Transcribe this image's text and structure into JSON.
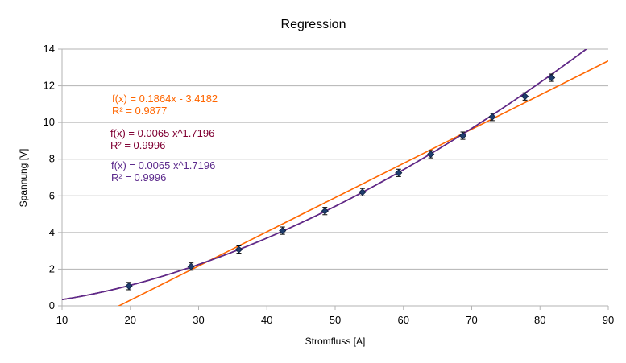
{
  "chart_data": {
    "type": "scatter",
    "title": "Regression",
    "xlabel": "Stromfluss [A]",
    "ylabel": "Spannung [V]",
    "xlim": [
      10,
      90
    ],
    "ylim": [
      0,
      14
    ],
    "xticks": [
      10,
      20,
      30,
      40,
      50,
      60,
      70,
      80,
      90
    ],
    "yticks": [
      0,
      2,
      4,
      6,
      8,
      10,
      12,
      14
    ],
    "grid": "horizontal",
    "points": {
      "color": "#1f3d6e",
      "x": [
        19.8,
        28.9,
        35.9,
        42.3,
        48.5,
        54.0,
        59.3,
        64.0,
        68.7,
        73.0,
        77.8,
        81.7
      ],
      "y": [
        1.08,
        2.14,
        3.07,
        4.1,
        5.17,
        6.2,
        7.25,
        8.27,
        9.28,
        10.3,
        11.42,
        12.44
      ],
      "yerr": 0.2
    },
    "trendlines": [
      {
        "kind": "linear",
        "slope": 0.1864,
        "intercept": -3.4182,
        "color": "#ff6600",
        "equation": "f(x) = 0.1864x - 3.4182",
        "r2": "R² = 0.9877"
      },
      {
        "kind": "power",
        "coef": 0.0065,
        "exp": 1.7196,
        "color": "#800033",
        "equation": "f(x) = 0.0065 x^1.7196",
        "r2": "R² = 0.9996"
      },
      {
        "kind": "power",
        "coef": 0.0065,
        "exp": 1.7196,
        "color": "#5c2a8c",
        "equation": "f(x) = 0.0065 x^1.7196",
        "r2": "R² = 0.9996"
      }
    ]
  }
}
